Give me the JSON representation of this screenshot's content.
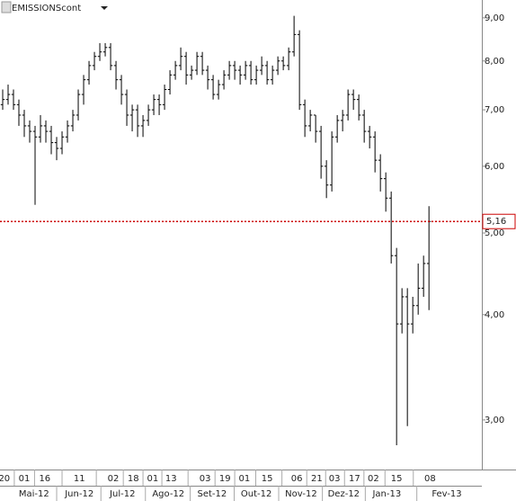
{
  "chart_data": {
    "type": "ohlc",
    "title": "EMISSIONScont",
    "log_scale": true,
    "color": "#000000",
    "ylim": [
      2.62,
      9.45
    ],
    "yticks": [
      {
        "value": 3,
        "label": "3,00"
      },
      {
        "value": 4,
        "label": "4,00"
      },
      {
        "value": 5,
        "label": "5,00"
      },
      {
        "value": 6,
        "label": "6,00"
      },
      {
        "value": 7,
        "label": "7,00"
      },
      {
        "value": 8,
        "label": "8,00"
      },
      {
        "value": 9,
        "label": "9,00"
      }
    ],
    "xlim": [
      -0.5,
      88.8
    ],
    "xticks": [
      {
        "value": 0.3,
        "label": "20"
      },
      {
        "value": 4,
        "label": "01"
      },
      {
        "value": 7.8,
        "label": "16"
      },
      {
        "value": 14.2,
        "label": "11"
      },
      {
        "value": 20.5,
        "label": "02"
      },
      {
        "value": 24.2,
        "label": "18"
      },
      {
        "value": 27.8,
        "label": "01"
      },
      {
        "value": 31.2,
        "label": "13"
      },
      {
        "value": 37.5,
        "label": "03"
      },
      {
        "value": 41.2,
        "label": "19"
      },
      {
        "value": 44.8,
        "label": "01"
      },
      {
        "value": 49,
        "label": "15"
      },
      {
        "value": 54.5,
        "label": "06"
      },
      {
        "value": 58.2,
        "label": "21"
      },
      {
        "value": 61.5,
        "label": "03"
      },
      {
        "value": 65.2,
        "label": "17"
      },
      {
        "value": 68.7,
        "label": "02"
      },
      {
        "value": 73,
        "label": "15"
      },
      {
        "value": 79.2,
        "label": "08"
      }
    ],
    "month_ticks": [
      {
        "value": 5.8,
        "label": "Mai-12"
      },
      {
        "value": 14.2,
        "label": "Jun-12"
      },
      {
        "value": 22.2,
        "label": "Jul-12"
      },
      {
        "value": 30.7,
        "label": "Ago-12"
      },
      {
        "value": 38.8,
        "label": "Set-12"
      },
      {
        "value": 47,
        "label": "Out-12"
      },
      {
        "value": 55.3,
        "label": "Nov-12"
      },
      {
        "value": 63.2,
        "label": "Dez-12"
      },
      {
        "value": 71.2,
        "label": "Jan-13"
      },
      {
        "value": 82.3,
        "label": "Fev-13"
      }
    ],
    "reference_line": {
      "value": 5.16,
      "label": "5,16",
      "color": "#cc0000"
    },
    "open": [
      7.1,
      7.2,
      7.3,
      7.1,
      6.9,
      6.7,
      6.6,
      6.5,
      6.7,
      6.6,
      6.4,
      6.3,
      6.5,
      6.7,
      6.9,
      7.3,
      7.6,
      7.9,
      8.1,
      8.2,
      8.3,
      7.9,
      7.6,
      7.3,
      6.9,
      7.0,
      6.7,
      6.8,
      7.0,
      7.2,
      7.1,
      7.4,
      7.7,
      7.9,
      8.1,
      7.7,
      7.8,
      8.1,
      7.8,
      7.6,
      7.3,
      7.5,
      7.7,
      7.9,
      7.8,
      7.7,
      7.9,
      7.6,
      7.8,
      7.9,
      7.6,
      7.8,
      8.0,
      7.9,
      8.2,
      8.6,
      7.1,
      6.7,
      6.9,
      6.6,
      6.0,
      5.7,
      6.5,
      6.8,
      6.9,
      7.3,
      7.2,
      6.9,
      6.6,
      6.5,
      6.1,
      5.8,
      5.5,
      4.7,
      3.9,
      4.2,
      3.9,
      4.1,
      4.3,
      4.6
    ],
    "high": [
      7.4,
      7.5,
      7.4,
      7.2,
      7.0,
      6.8,
      6.7,
      6.9,
      6.8,
      6.7,
      6.5,
      6.6,
      6.8,
      7.0,
      7.4,
      7.7,
      8.0,
      8.2,
      8.4,
      8.4,
      8.4,
      8.0,
      7.7,
      7.4,
      7.1,
      7.1,
      6.9,
      7.1,
      7.3,
      7.3,
      7.5,
      7.8,
      8.0,
      8.3,
      8.2,
      7.9,
      8.2,
      8.2,
      7.9,
      7.7,
      7.6,
      7.8,
      8.0,
      8.0,
      7.9,
      8.0,
      8.0,
      7.9,
      8.1,
      8.0,
      7.9,
      8.1,
      8.1,
      8.3,
      9.05,
      8.7,
      7.2,
      7.0,
      6.9,
      6.7,
      6.1,
      6.6,
      6.9,
      7.0,
      7.4,
      7.4,
      7.3,
      7.0,
      6.7,
      6.6,
      6.2,
      5.9,
      5.6,
      4.8,
      4.3,
      4.3,
      4.2,
      4.6,
      4.7,
      5.38
    ],
    "low": [
      7.0,
      7.1,
      7.0,
      6.7,
      6.5,
      6.4,
      5.4,
      6.4,
      6.4,
      6.2,
      6.1,
      6.2,
      6.4,
      6.6,
      6.8,
      7.1,
      7.5,
      7.8,
      8.0,
      8.1,
      7.8,
      7.4,
      7.1,
      6.7,
      6.6,
      6.5,
      6.5,
      6.7,
      6.9,
      6.9,
      7.0,
      7.3,
      7.6,
      7.8,
      7.5,
      7.6,
      7.7,
      7.7,
      7.4,
      7.2,
      7.2,
      7.4,
      7.6,
      7.6,
      7.5,
      7.6,
      7.5,
      7.5,
      7.7,
      7.5,
      7.5,
      7.7,
      7.8,
      7.8,
      8.1,
      7.0,
      6.5,
      6.6,
      6.4,
      5.8,
      5.5,
      5.6,
      6.4,
      6.6,
      6.8,
      7.0,
      6.8,
      6.4,
      6.3,
      5.9,
      5.6,
      5.3,
      4.6,
      2.8,
      3.8,
      2.95,
      3.8,
      4.0,
      4.2,
      4.05
    ],
    "close": [
      7.2,
      7.3,
      7.1,
      6.9,
      6.7,
      6.6,
      6.5,
      6.7,
      6.6,
      6.4,
      6.3,
      6.5,
      6.7,
      6.9,
      7.3,
      7.6,
      7.9,
      8.1,
      8.2,
      8.3,
      7.9,
      7.6,
      7.3,
      6.9,
      7.0,
      6.7,
      6.8,
      7.0,
      7.2,
      7.1,
      7.4,
      7.7,
      7.9,
      8.1,
      7.7,
      7.8,
      8.1,
      7.8,
      7.6,
      7.3,
      7.5,
      7.7,
      7.9,
      7.8,
      7.7,
      7.9,
      7.6,
      7.8,
      7.9,
      7.6,
      7.8,
      8.0,
      7.9,
      8.2,
      8.6,
      7.1,
      6.7,
      6.9,
      6.6,
      6.0,
      5.7,
      6.5,
      6.8,
      6.9,
      7.3,
      7.2,
      6.9,
      6.6,
      6.5,
      6.1,
      5.8,
      5.5,
      4.7,
      3.9,
      4.2,
      3.9,
      4.1,
      4.3,
      4.6,
      5.16
    ]
  }
}
